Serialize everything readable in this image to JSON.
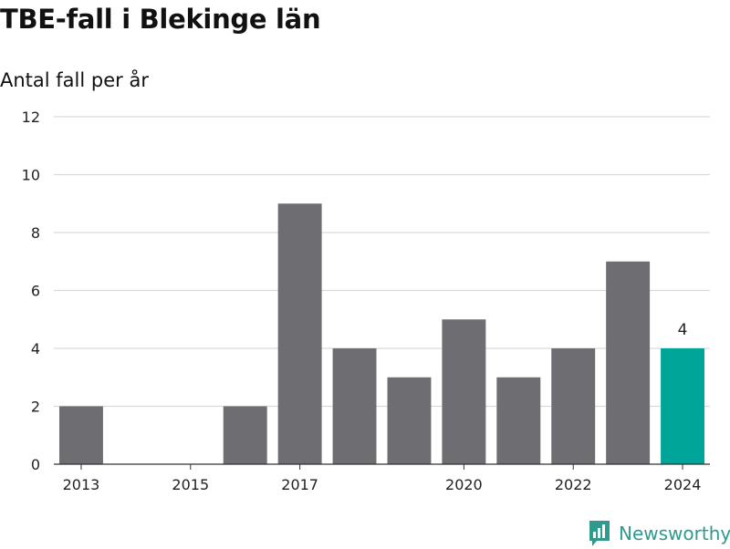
{
  "title": "TBE-fall i Blekinge län",
  "subtitle": "Antal fall per år",
  "brand": "Newsworthy",
  "colors": {
    "bar": "#6e6d72",
    "highlight": "#00a59a",
    "grid": "#d9d9d9",
    "axis": "#333333",
    "brand": "#2f9a8e"
  },
  "chart_data": {
    "type": "bar",
    "title": "TBE-fall i Blekinge län",
    "subtitle": "Antal fall per år",
    "xlabel": "",
    "ylabel": "",
    "categories": [
      "2013",
      "2014",
      "2015",
      "2016",
      "2017",
      "2018",
      "2019",
      "2020",
      "2021",
      "2022",
      "2023",
      "2024"
    ],
    "x_tick_labels": [
      "2013",
      "",
      "2015",
      "",
      "2017",
      "",
      "",
      "2020",
      "",
      "2022",
      "",
      "2024"
    ],
    "values": [
      2,
      0,
      0,
      2,
      9,
      4,
      3,
      5,
      3,
      4,
      7,
      4
    ],
    "highlight_index": 11,
    "data_labels": [
      {
        "category": "2024",
        "text": "4"
      }
    ],
    "ylim": [
      0,
      12
    ],
    "yticks": [
      0,
      2,
      4,
      6,
      8,
      10,
      12
    ],
    "grid": true,
    "legend": "none"
  }
}
